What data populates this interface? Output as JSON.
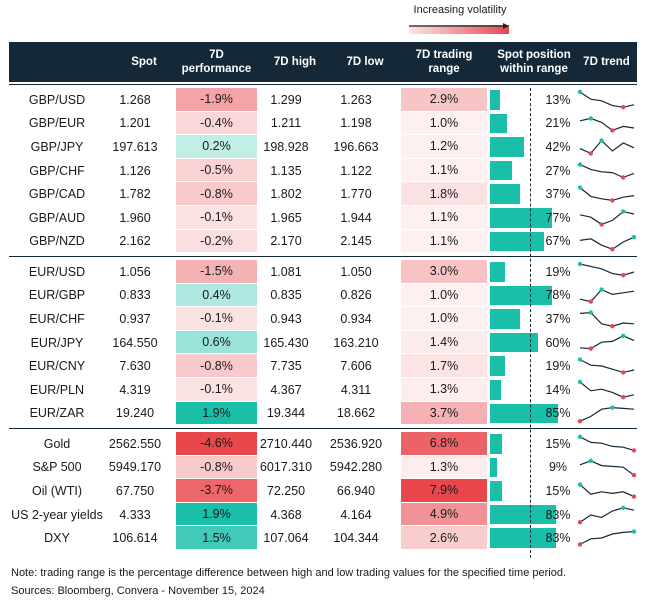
{
  "legend": {
    "label": "Increasing volatility"
  },
  "headers": {
    "pair": "",
    "spot": "Spot",
    "perf": "7D performance",
    "high": "7D high",
    "low": "7D low",
    "range": "7D trading range",
    "position": "Spot position within range",
    "trend": "7D trend"
  },
  "groups": [
    {
      "rows": [
        {
          "pair": "GBP/USD",
          "spot": "1.268",
          "perf": "-1.9%",
          "perf_value": -1.9,
          "high": "1.299",
          "low": "1.263",
          "range": "2.9%",
          "range_value": 2.9,
          "pos": "13%",
          "pos_value": 0.13,
          "trend": [
            1.0,
            0.55,
            0.45,
            0.15,
            0.05,
            0.2
          ]
        },
        {
          "pair": "GBP/EUR",
          "spot": "1.201",
          "perf": "-0.4%",
          "perf_value": -0.4,
          "high": "1.211",
          "low": "1.198",
          "range": "1.0%",
          "range_value": 1.0,
          "pos": "21%",
          "pos_value": 0.21,
          "trend": [
            0.7,
            0.85,
            0.6,
            0.1,
            0.35,
            0.25
          ]
        },
        {
          "pair": "GBP/JPY",
          "spot": "197.613",
          "perf": "0.2%",
          "perf_value": 0.2,
          "high": "198.928",
          "low": "196.663",
          "range": "1.2%",
          "range_value": 1.2,
          "pos": "42%",
          "pos_value": 0.42,
          "trend": [
            0.4,
            0.1,
            0.9,
            0.25,
            0.75,
            0.45
          ]
        },
        {
          "pair": "GBP/CHF",
          "spot": "1.126",
          "perf": "-0.5%",
          "perf_value": -0.5,
          "high": "1.135",
          "low": "1.122",
          "range": "1.1%",
          "range_value": 1.1,
          "pos": "27%",
          "pos_value": 0.27,
          "trend": [
            0.9,
            0.6,
            0.45,
            0.4,
            0.1,
            0.35
          ]
        },
        {
          "pair": "GBP/CAD",
          "spot": "1.782",
          "perf": "-0.8%",
          "perf_value": -0.8,
          "high": "1.802",
          "low": "1.770",
          "range": "1.8%",
          "range_value": 1.8,
          "pos": "37%",
          "pos_value": 0.37,
          "trend": [
            0.9,
            0.35,
            0.2,
            0.1,
            0.3,
            0.4
          ]
        },
        {
          "pair": "GBP/AUD",
          "spot": "1.960",
          "perf": "-0.1%",
          "perf_value": -0.1,
          "high": "1.965",
          "low": "1.944",
          "range": "1.1%",
          "range_value": 1.1,
          "pos": "77%",
          "pos_value": 0.77,
          "trend": [
            0.7,
            0.55,
            0.1,
            0.35,
            0.9,
            0.75
          ]
        },
        {
          "pair": "GBP/NZD",
          "spot": "2.162",
          "perf": "-0.2%",
          "perf_value": -0.2,
          "high": "2.170",
          "low": "2.145",
          "range": "1.1%",
          "range_value": 1.1,
          "pos": "67%",
          "pos_value": 0.67,
          "trend": [
            0.6,
            0.7,
            0.3,
            0.05,
            0.5,
            0.8
          ]
        }
      ]
    },
    {
      "rows": [
        {
          "pair": "EUR/USD",
          "spot": "1.056",
          "perf": "-1.5%",
          "perf_value": -1.5,
          "high": "1.081",
          "low": "1.050",
          "range": "3.0%",
          "range_value": 3.0,
          "pos": "19%",
          "pos_value": 0.19,
          "trend": [
            1.0,
            0.85,
            0.7,
            0.4,
            0.3,
            0.5
          ]
        },
        {
          "pair": "EUR/GBP",
          "spot": "0.833",
          "perf": "0.4%",
          "perf_value": 0.4,
          "high": "0.835",
          "low": "0.826",
          "range": "1.0%",
          "range_value": 1.0,
          "pos": "78%",
          "pos_value": 0.78,
          "trend": [
            0.3,
            0.15,
            0.9,
            0.6,
            0.7,
            0.8
          ]
        },
        {
          "pair": "EUR/CHF",
          "spot": "0.937",
          "perf": "-0.1%",
          "perf_value": -0.1,
          "high": "0.943",
          "low": "0.934",
          "range": "1.0%",
          "range_value": 1.0,
          "pos": "37%",
          "pos_value": 0.37,
          "trend": [
            0.85,
            0.9,
            0.2,
            0.05,
            0.25,
            0.2
          ]
        },
        {
          "pair": "EUR/JPY",
          "spot": "164.550",
          "perf": "0.6%",
          "perf_value": 0.6,
          "high": "165.430",
          "low": "163.210",
          "range": "1.4%",
          "range_value": 1.4,
          "pos": "60%",
          "pos_value": 0.6,
          "trend": [
            0.2,
            0.15,
            0.55,
            0.6,
            0.95,
            0.65
          ]
        },
        {
          "pair": "EUR/CNY",
          "spot": "7.630",
          "perf": "-0.8%",
          "perf_value": -0.8,
          "high": "7.735",
          "low": "7.606",
          "range": "1.7%",
          "range_value": 1.7,
          "pos": "19%",
          "pos_value": 0.19,
          "trend": [
            0.9,
            0.55,
            0.5,
            0.3,
            0.1,
            0.25
          ]
        },
        {
          "pair": "EUR/PLN",
          "spot": "4.319",
          "perf": "-0.1%",
          "perf_value": -0.1,
          "high": "4.367",
          "low": "4.311",
          "range": "1.3%",
          "range_value": 1.3,
          "pos": "14%",
          "pos_value": 0.14,
          "trend": [
            1.0,
            0.45,
            0.55,
            0.35,
            0.05,
            0.2
          ]
        },
        {
          "pair": "EUR/ZAR",
          "spot": "19.240",
          "perf": "1.9%",
          "perf_value": 1.9,
          "high": "19.344",
          "low": "18.662",
          "range": "3.7%",
          "range_value": 3.7,
          "pos": "85%",
          "pos_value": 0.85,
          "trend": [
            0.05,
            0.35,
            0.8,
            0.9,
            0.85,
            0.8
          ]
        }
      ]
    },
    {
      "rows": [
        {
          "pair": "Gold",
          "spot": "2562.550",
          "perf": "-4.6%",
          "perf_value": -4.6,
          "high": "2710.440",
          "low": "2536.920",
          "range": "6.8%",
          "range_value": 6.8,
          "pos": "15%",
          "pos_value": 0.15,
          "trend": [
            0.95,
            0.6,
            0.55,
            0.35,
            0.3,
            0.1
          ]
        },
        {
          "pair": "S&P 500",
          "spot": "5949.170",
          "perf": "-0.8%",
          "perf_value": -0.8,
          "high": "6017.310",
          "low": "5942.280",
          "range": "1.3%",
          "range_value": 1.3,
          "pos": "9%",
          "pos_value": 0.09,
          "trend": [
            0.7,
            0.95,
            0.65,
            0.6,
            0.55,
            0.05
          ]
        },
        {
          "pair": "Oil (WTI)",
          "spot": "67.750",
          "perf": "-3.7%",
          "perf_value": -3.7,
          "high": "72.250",
          "low": "66.940",
          "range": "7.9%",
          "range_value": 7.9,
          "pos": "15%",
          "pos_value": 0.15,
          "trend": [
            0.9,
            0.3,
            0.45,
            0.35,
            0.45,
            0.15
          ]
        },
        {
          "pair": "US 2-year yields",
          "spot": "4.333",
          "perf": "1.9%",
          "perf_value": 1.9,
          "high": "4.368",
          "low": "4.164",
          "range": "4.9%",
          "range_value": 4.9,
          "pos": "83%",
          "pos_value": 0.83,
          "trend": [
            0.05,
            0.5,
            0.35,
            0.75,
            0.95,
            0.8
          ]
        },
        {
          "pair": "DXY",
          "spot": "106.614",
          "perf": "1.5%",
          "perf_value": 1.5,
          "high": "107.064",
          "low": "104.344",
          "range": "2.6%",
          "range_value": 2.6,
          "pos": "83%",
          "pos_value": 0.83,
          "trend": [
            0.1,
            0.45,
            0.5,
            0.75,
            0.85,
            0.9
          ]
        }
      ]
    }
  ],
  "note": "Note: trading range is the percentage difference between high and low trading values for the specified time period.",
  "source": "Sources: Bloomberg, Convera - November 15, 2024",
  "colors": {
    "header": "#142838",
    "teal": "#19bfa9",
    "red": "#e8474c",
    "trend_line": "#142838",
    "trend_max": "#19bfa9",
    "trend_min": "#e8474c"
  }
}
